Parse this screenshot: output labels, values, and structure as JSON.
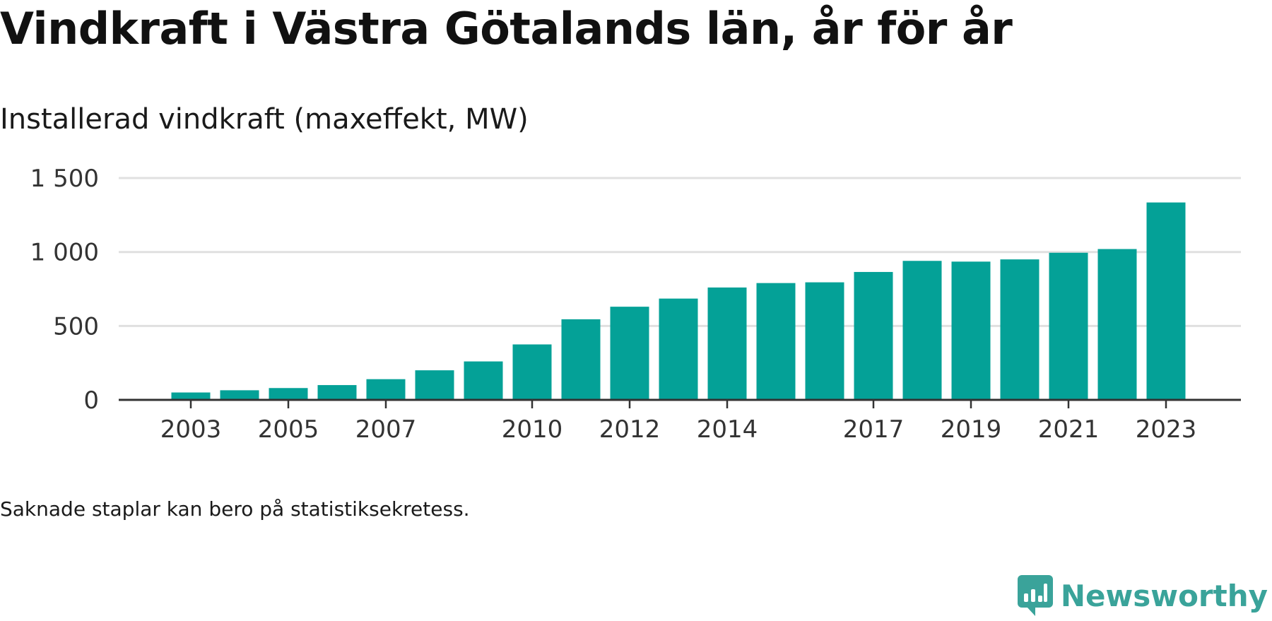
{
  "title": "Vindkraft i Västra Götalands län, år för år",
  "subtitle": "Installerad vindkraft (maxeffekt, MW)",
  "footnote": "Saknade staplar kan bero på statistiksekretess.",
  "brand": {
    "name": "Newsworthy",
    "icon": "newsworthy-logo-icon"
  },
  "colors": {
    "bar": "#04a197",
    "grid": "#e0e0e0",
    "axis": "#333333",
    "brand": "#3aa39a"
  },
  "chart_data": {
    "type": "bar",
    "title": "Vindkraft i Västra Götalands län, år för år",
    "subtitle": "Installerad vindkraft (maxeffekt, MW)",
    "xlabel": "",
    "ylabel": "",
    "categories": [
      "2003",
      "2004",
      "2005",
      "2006",
      "2007",
      "2008",
      "2009",
      "2010",
      "2011",
      "2012",
      "2013",
      "2014",
      "2015",
      "2016",
      "2017",
      "2018",
      "2019",
      "2020",
      "2021",
      "2022",
      "2023"
    ],
    "values": [
      50,
      65,
      80,
      100,
      140,
      200,
      260,
      375,
      545,
      630,
      685,
      760,
      790,
      795,
      865,
      940,
      935,
      950,
      995,
      1020,
      1335
    ],
    "x_tick_labels": [
      "2003",
      "2005",
      "2007",
      "2010",
      "2012",
      "2014",
      "2017",
      "2019",
      "2021",
      "2023"
    ],
    "y_ticks": [
      0,
      500,
      1000,
      1500
    ],
    "y_tick_labels": [
      "0",
      "500",
      "1 000",
      "1 500"
    ],
    "ylim": [
      0,
      1500
    ],
    "grid": true,
    "legend": "none"
  }
}
